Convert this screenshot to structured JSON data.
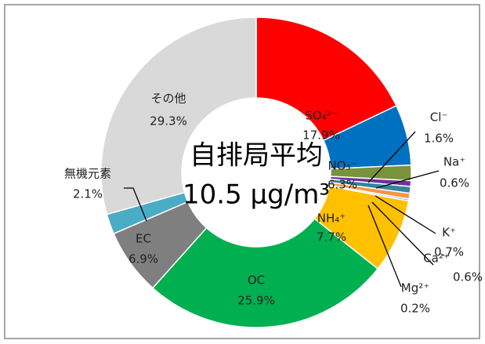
{
  "chart_data": {
    "type": "donut",
    "categories": [
      "SO₄²⁻",
      "NO₃⁻",
      "Cl⁻",
      "Na⁺",
      "K⁺",
      "Ca²⁺",
      "Mg²⁺",
      "NH₄⁺",
      "OC",
      "EC",
      "無機元素",
      "その他"
    ],
    "values": [
      17.9,
      6.3,
      1.6,
      0.6,
      0.7,
      0.6,
      0.2,
      7.7,
      25.9,
      6.9,
      2.1,
      29.3
    ],
    "value_labels": [
      "17.9%",
      "6.3%",
      "1.6%",
      "0.6%",
      "0.7%",
      "0.6%",
      "0.2%",
      "7.7%",
      "25.9%",
      "6.9%",
      "2.1%",
      "29.3%"
    ],
    "colors": [
      "#ff0000",
      "#0070c0",
      "#77933c",
      "#7030a0",
      "#31859c",
      "#f79646",
      "#8eb4e3",
      "#ffc000",
      "#00b050",
      "#7f7f7f",
      "#4bacc6",
      "#d9d9d9"
    ],
    "annotations": [
      "自排局平均",
      "10.5 μg/m³"
    ]
  }
}
